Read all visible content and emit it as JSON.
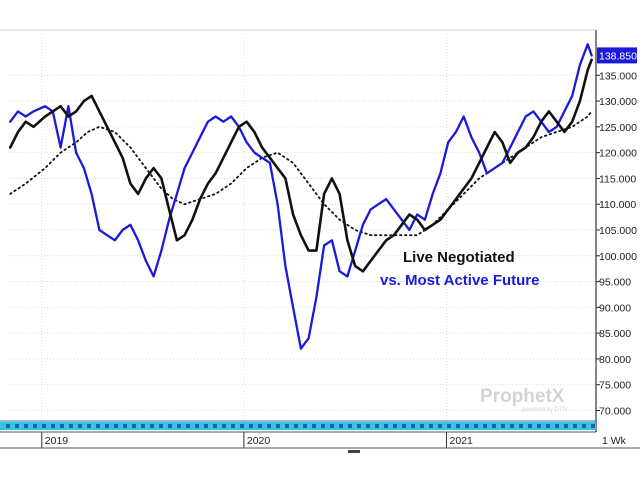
{
  "chart_data": {
    "type": "line",
    "title": "",
    "xlabel": "",
    "ylabel": "",
    "x_range": [
      "2018-11",
      "2021-09"
    ],
    "ylim": [
      67,
      143
    ],
    "y_ticks": [
      70,
      75,
      80,
      85,
      90,
      95,
      100,
      105,
      110,
      115,
      120,
      125,
      130,
      135
    ],
    "y_tick_labels": [
      "70.000",
      "75.000",
      "80.000",
      "85.000",
      "90.000",
      "95.000",
      "100.000",
      "105.000",
      "110.000",
      "115.000",
      "120.000",
      "125.000",
      "130.000",
      "135.000"
    ],
    "x_tick_labels": [
      "2019",
      "2020",
      "2021"
    ],
    "x_tick_dates": [
      "2019-01-01",
      "2020-01-01",
      "2021-01-01"
    ],
    "timeframe_label": "1 Wk",
    "last_value_label": "138.850",
    "grid": true,
    "annotations": [
      "Live Negotiated",
      "vs. Most Active Future"
    ],
    "watermark": {
      "brand": "ProphetX",
      "sub": "powered by DTN"
    },
    "colors": {
      "negotiated": "#111111",
      "future": "#1a1adb",
      "moving_average": "#111111",
      "last_label_bg": "#1a1adb",
      "band": "#33c6dd"
    },
    "series": [
      {
        "key": "negotiated",
        "style": "solid",
        "points": [
          [
            "2018-11-05",
            121
          ],
          [
            "2018-11-19",
            124
          ],
          [
            "2018-12-03",
            126
          ],
          [
            "2018-12-17",
            125
          ],
          [
            "2019-01-07",
            127
          ],
          [
            "2019-01-21",
            128
          ],
          [
            "2019-02-04",
            129
          ],
          [
            "2019-02-18",
            127
          ],
          [
            "2019-03-04",
            128
          ],
          [
            "2019-03-18",
            130
          ],
          [
            "2019-04-01",
            131
          ],
          [
            "2019-04-15",
            128
          ],
          [
            "2019-04-29",
            125
          ],
          [
            "2019-05-13",
            122
          ],
          [
            "2019-05-27",
            119
          ],
          [
            "2019-06-10",
            114
          ],
          [
            "2019-06-24",
            112
          ],
          [
            "2019-07-08",
            115
          ],
          [
            "2019-07-22",
            117
          ],
          [
            "2019-08-05",
            115
          ],
          [
            "2019-08-19",
            109
          ],
          [
            "2019-09-02",
            103
          ],
          [
            "2019-09-16",
            104
          ],
          [
            "2019-09-30",
            107
          ],
          [
            "2019-10-14",
            111
          ],
          [
            "2019-10-28",
            114
          ],
          [
            "2019-11-11",
            116
          ],
          [
            "2019-11-25",
            119
          ],
          [
            "2019-12-09",
            122
          ],
          [
            "2019-12-23",
            125
          ],
          [
            "2020-01-06",
            126
          ],
          [
            "2020-01-20",
            124
          ],
          [
            "2020-02-03",
            121
          ],
          [
            "2020-02-17",
            119
          ],
          [
            "2020-03-02",
            117
          ],
          [
            "2020-03-16",
            115
          ],
          [
            "2020-03-30",
            108
          ],
          [
            "2020-04-13",
            104
          ],
          [
            "2020-04-27",
            101
          ],
          [
            "2020-05-11",
            101
          ],
          [
            "2020-05-25",
            112
          ],
          [
            "2020-06-08",
            115
          ],
          [
            "2020-06-22",
            112
          ],
          [
            "2020-07-06",
            103
          ],
          [
            "2020-07-20",
            98
          ],
          [
            "2020-08-03",
            97
          ],
          [
            "2020-08-17",
            99
          ],
          [
            "2020-08-31",
            101
          ],
          [
            "2020-09-14",
            103
          ],
          [
            "2020-09-28",
            104
          ],
          [
            "2020-10-12",
            106
          ],
          [
            "2020-10-26",
            108
          ],
          [
            "2020-11-09",
            107
          ],
          [
            "2020-11-23",
            105
          ],
          [
            "2020-12-07",
            106
          ],
          [
            "2020-12-21",
            107
          ],
          [
            "2021-01-04",
            109
          ],
          [
            "2021-01-18",
            111
          ],
          [
            "2021-02-01",
            113
          ],
          [
            "2021-02-15",
            115
          ],
          [
            "2021-03-01",
            118
          ],
          [
            "2021-03-15",
            121
          ],
          [
            "2021-03-29",
            124
          ],
          [
            "2021-04-12",
            122
          ],
          [
            "2021-04-26",
            118
          ],
          [
            "2021-05-10",
            120
          ],
          [
            "2021-05-24",
            121
          ],
          [
            "2021-06-07",
            123
          ],
          [
            "2021-06-21",
            126
          ],
          [
            "2021-07-05",
            128
          ],
          [
            "2021-07-19",
            126
          ],
          [
            "2021-08-02",
            124
          ],
          [
            "2021-08-16",
            126
          ],
          [
            "2021-08-30",
            130
          ],
          [
            "2021-09-13",
            136
          ],
          [
            "2021-09-20",
            138
          ]
        ]
      },
      {
        "key": "future",
        "style": "solid",
        "points": [
          [
            "2018-11-05",
            126
          ],
          [
            "2018-11-19",
            128
          ],
          [
            "2018-12-03",
            127
          ],
          [
            "2018-12-17",
            128
          ],
          [
            "2019-01-07",
            129
          ],
          [
            "2019-01-21",
            128
          ],
          [
            "2019-02-04",
            121
          ],
          [
            "2019-02-18",
            129
          ],
          [
            "2019-03-04",
            120
          ],
          [
            "2019-03-18",
            117
          ],
          [
            "2019-04-01",
            112
          ],
          [
            "2019-04-15",
            105
          ],
          [
            "2019-04-29",
            104
          ],
          [
            "2019-05-13",
            103
          ],
          [
            "2019-05-27",
            105
          ],
          [
            "2019-06-10",
            106
          ],
          [
            "2019-06-24",
            103
          ],
          [
            "2019-07-08",
            99
          ],
          [
            "2019-07-22",
            96
          ],
          [
            "2019-08-05",
            101
          ],
          [
            "2019-08-19",
            107
          ],
          [
            "2019-09-02",
            112
          ],
          [
            "2019-09-16",
            117
          ],
          [
            "2019-09-30",
            120
          ],
          [
            "2019-10-14",
            123
          ],
          [
            "2019-10-28",
            126
          ],
          [
            "2019-11-11",
            127
          ],
          [
            "2019-11-25",
            126
          ],
          [
            "2019-12-09",
            127
          ],
          [
            "2019-12-23",
            125
          ],
          [
            "2020-01-06",
            122
          ],
          [
            "2020-01-20",
            120
          ],
          [
            "2020-02-03",
            119
          ],
          [
            "2020-02-17",
            118
          ],
          [
            "2020-03-02",
            110
          ],
          [
            "2020-03-16",
            98
          ],
          [
            "2020-03-30",
            90
          ],
          [
            "2020-04-13",
            82
          ],
          [
            "2020-04-27",
            84
          ],
          [
            "2020-05-11",
            92
          ],
          [
            "2020-05-25",
            102
          ],
          [
            "2020-06-08",
            103
          ],
          [
            "2020-06-22",
            97
          ],
          [
            "2020-07-06",
            96
          ],
          [
            "2020-07-20",
            101
          ],
          [
            "2020-08-03",
            106
          ],
          [
            "2020-08-17",
            109
          ],
          [
            "2020-08-31",
            110
          ],
          [
            "2020-09-14",
            111
          ],
          [
            "2020-09-28",
            109
          ],
          [
            "2020-10-12",
            107
          ],
          [
            "2020-10-26",
            105
          ],
          [
            "2020-11-09",
            108
          ],
          [
            "2020-11-23",
            107
          ],
          [
            "2020-12-07",
            112
          ],
          [
            "2020-12-21",
            116
          ],
          [
            "2021-01-04",
            122
          ],
          [
            "2021-01-18",
            124
          ],
          [
            "2021-02-01",
            127
          ],
          [
            "2021-02-15",
            123
          ],
          [
            "2021-03-01",
            120
          ],
          [
            "2021-03-15",
            116
          ],
          [
            "2021-03-29",
            117
          ],
          [
            "2021-04-12",
            118
          ],
          [
            "2021-04-26",
            121
          ],
          [
            "2021-05-10",
            124
          ],
          [
            "2021-05-24",
            127
          ],
          [
            "2021-06-07",
            128
          ],
          [
            "2021-06-21",
            126
          ],
          [
            "2021-07-05",
            124
          ],
          [
            "2021-07-19",
            125
          ],
          [
            "2021-08-02",
            128
          ],
          [
            "2021-08-16",
            131
          ],
          [
            "2021-08-30",
            137
          ],
          [
            "2021-09-13",
            141
          ],
          [
            "2021-09-20",
            138.85
          ]
        ]
      },
      {
        "key": "moving_average",
        "style": "dotted",
        "points": [
          [
            "2018-11-05",
            112
          ],
          [
            "2018-12-03",
            114
          ],
          [
            "2019-01-07",
            117
          ],
          [
            "2019-02-04",
            120
          ],
          [
            "2019-03-04",
            122
          ],
          [
            "2019-03-25",
            124
          ],
          [
            "2019-04-15",
            125
          ],
          [
            "2019-05-13",
            124
          ],
          [
            "2019-06-10",
            121
          ],
          [
            "2019-07-08",
            117
          ],
          [
            "2019-08-05",
            113
          ],
          [
            "2019-08-26",
            111
          ],
          [
            "2019-09-16",
            110
          ],
          [
            "2019-10-14",
            111
          ],
          [
            "2019-11-11",
            112
          ],
          [
            "2019-12-09",
            114
          ],
          [
            "2020-01-06",
            117
          ],
          [
            "2020-02-03",
            119
          ],
          [
            "2020-03-02",
            120
          ],
          [
            "2020-03-30",
            118
          ],
          [
            "2020-04-27",
            114
          ],
          [
            "2020-05-25",
            110
          ],
          [
            "2020-06-22",
            107
          ],
          [
            "2020-07-20",
            105
          ],
          [
            "2020-08-17",
            104
          ],
          [
            "2020-09-14",
            104
          ],
          [
            "2020-10-12",
            104
          ],
          [
            "2020-11-09",
            104
          ],
          [
            "2020-12-07",
            106
          ],
          [
            "2021-01-04",
            109
          ],
          [
            "2021-02-01",
            112
          ],
          [
            "2021-03-01",
            115
          ],
          [
            "2021-03-29",
            117
          ],
          [
            "2021-04-26",
            119
          ],
          [
            "2021-05-24",
            121
          ],
          [
            "2021-06-21",
            123
          ],
          [
            "2021-07-19",
            124
          ],
          [
            "2021-08-16",
            125
          ],
          [
            "2021-09-13",
            127
          ],
          [
            "2021-09-20",
            128
          ]
        ]
      }
    ]
  }
}
